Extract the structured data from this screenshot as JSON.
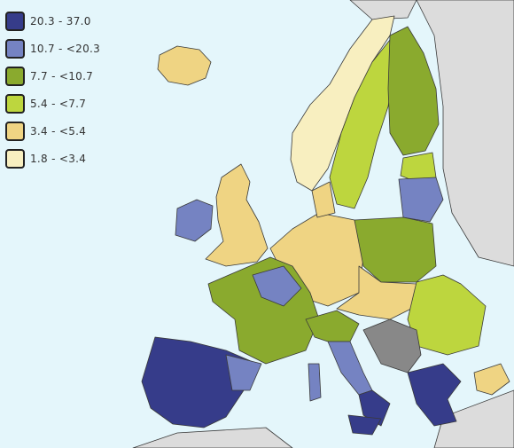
{
  "legend": {
    "items": [
      {
        "label": "20.3 - 37.0",
        "color": "#363c8a"
      },
      {
        "label": "10.7 - <20.3",
        "color": "#7583c2"
      },
      {
        "label": "7.7 - <10.7",
        "color": "#8aaa2e"
      },
      {
        "label": "5.4 - <7.7",
        "color": "#bdd63e"
      },
      {
        "label": "3.4 - <5.4",
        "color": "#efd483"
      },
      {
        "label": "1.8 - <3.4",
        "color": "#f8efc0"
      }
    ]
  }
}
